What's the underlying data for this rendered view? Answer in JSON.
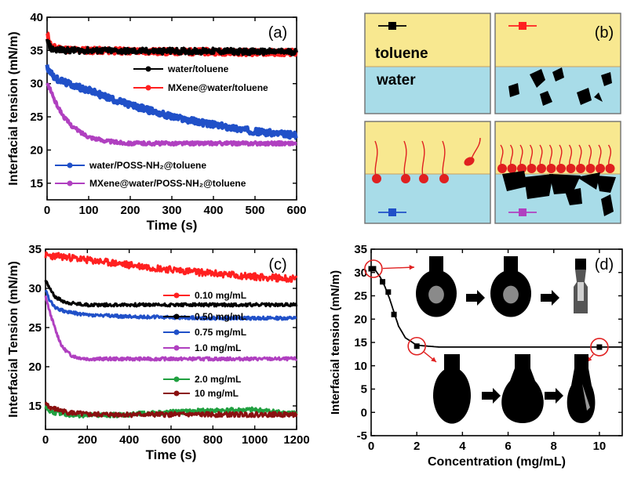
{
  "chart_data": [
    {
      "panel": "(a)",
      "type": "line",
      "xlabel": "Time (s)",
      "ylabel": "Interfacial  tension  (mN/m)",
      "xlim": [
        0,
        600
      ],
      "ylim": [
        12.5,
        40
      ],
      "xticks": [
        0,
        100,
        200,
        300,
        400,
        500,
        600
      ],
      "yticks": [
        15,
        20,
        25,
        30,
        35,
        40
      ],
      "legend": "center-right",
      "series": [
        {
          "name": "water/toluene",
          "color": "#000000",
          "marker": "circle",
          "x": [
            0,
            10,
            50,
            100,
            200,
            300,
            400,
            500,
            600
          ],
          "y": [
            36.5,
            35.2,
            35.0,
            35.0,
            34.9,
            34.9,
            34.9,
            34.8,
            34.8
          ]
        },
        {
          "name": "MXene@water/toluene",
          "color": "#ff2020",
          "marker": "circle",
          "x": [
            0,
            10,
            50,
            100,
            200,
            300,
            400,
            500,
            600
          ],
          "y": [
            37.5,
            35.5,
            35.1,
            35.0,
            34.9,
            34.8,
            34.8,
            34.7,
            34.7
          ]
        },
        {
          "name": "water/POSS-NH₂@toluene",
          "color": "#2050c8",
          "marker": "circle",
          "x": [
            0,
            20,
            50,
            100,
            150,
            200,
            300,
            400,
            500,
            600
          ],
          "y": [
            32.5,
            30.8,
            30.0,
            29.0,
            27.8,
            26.8,
            25.0,
            23.8,
            22.8,
            22.2
          ]
        },
        {
          "name": "MXene@water/POSS-NH₂@toluene",
          "color": "#b040c0",
          "marker": "circle",
          "x": [
            0,
            10,
            20,
            40,
            60,
            80,
            100,
            130,
            160,
            200,
            300,
            400,
            500,
            600
          ],
          "y": [
            30.0,
            28.8,
            27.2,
            25.0,
            23.6,
            22.7,
            22.0,
            21.5,
            21.2,
            21.0,
            21.0,
            21.0,
            21.0,
            21.0
          ]
        }
      ]
    },
    {
      "panel": "(b)",
      "type": "diagram",
      "labels": {
        "top": "toluene",
        "bottom": "water"
      },
      "colors": {
        "toluene": "#f8e890",
        "water": "#a8dce8",
        "marker_black": "#000000",
        "marker_red": "#ff2020",
        "marker_blue": "#2050c8",
        "marker_purple": "#b040c0"
      }
    },
    {
      "panel": "(c)",
      "type": "line",
      "xlabel": "Time (s)",
      "ylabel": "Interfacial Tension (mN/m)",
      "xlim": [
        0,
        1200
      ],
      "ylim": [
        12,
        35
      ],
      "xticks": [
        0,
        200,
        400,
        600,
        800,
        1000,
        1200
      ],
      "yticks": [
        15,
        20,
        25,
        30,
        35
      ],
      "legend": "center-right",
      "series": [
        {
          "name": "0.10 mg/mL",
          "color": "#ff2020",
          "x": [
            0,
            100,
            200,
            400,
            600,
            800,
            1000,
            1200
          ],
          "y": [
            34.2,
            34.0,
            33.6,
            33.0,
            32.4,
            31.9,
            31.5,
            31.2
          ]
        },
        {
          "name": "0.50 mg/mL",
          "color": "#000000",
          "x": [
            0,
            20,
            50,
            100,
            150,
            200,
            400,
            600,
            800,
            1000,
            1200
          ],
          "y": [
            31.0,
            30.0,
            28.8,
            28.2,
            28.0,
            27.9,
            27.9,
            27.9,
            27.9,
            27.9,
            27.9
          ]
        },
        {
          "name": "0.75 mg/mL",
          "color": "#2050c8",
          "x": [
            0,
            20,
            50,
            100,
            200,
            400,
            600,
            800,
            1000,
            1200
          ],
          "y": [
            29.8,
            28.5,
            27.5,
            27.0,
            26.6,
            26.4,
            26.3,
            26.2,
            26.2,
            26.2
          ]
        },
        {
          "name": "1.0 mg/mL",
          "color": "#b040c0",
          "x": [
            0,
            20,
            50,
            80,
            120,
            150,
            200,
            400,
            600,
            800,
            1000,
            1200
          ],
          "y": [
            29.0,
            27.0,
            24.5,
            22.5,
            21.5,
            21.2,
            21.0,
            21.0,
            21.0,
            21.0,
            21.0,
            21.0
          ]
        },
        {
          "name": "2.0 mg/mL",
          "color": "#20a040",
          "x": [
            0,
            20,
            100,
            200,
            400,
            600,
            800,
            1000,
            1200
          ],
          "y": [
            14.8,
            14.3,
            13.9,
            13.8,
            13.9,
            14.2,
            14.4,
            14.5,
            14.0
          ]
        },
        {
          "name": "10 mg/mL",
          "color": "#8a1010",
          "x": [
            0,
            20,
            100,
            200,
            400,
            600,
            800,
            1000,
            1200
          ],
          "y": [
            15.5,
            14.8,
            14.2,
            13.9,
            13.9,
            13.9,
            13.9,
            13.9,
            13.9
          ]
        }
      ]
    },
    {
      "panel": "(d)",
      "type": "line",
      "xlabel": "Concentration (mg/mL)",
      "ylabel": "Interfacial  tension  (mN/m)",
      "xlim": [
        0,
        11
      ],
      "ylim": [
        -5,
        35
      ],
      "xticks": [
        0,
        2,
        4,
        6,
        8,
        10
      ],
      "yticks": [
        -5,
        0,
        5,
        10,
        15,
        20,
        25,
        30,
        35
      ],
      "series": [
        {
          "name": "",
          "color": "#000000",
          "marker": "square",
          "x": [
            0,
            0.1,
            0.5,
            0.75,
            1.0,
            2.0,
            10.0
          ],
          "y": [
            30.8,
            30.8,
            28.0,
            25.8,
            21.0,
            14.2,
            14.0
          ]
        }
      ],
      "fit_line": {
        "x": [
          0,
          0.2,
          0.4,
          0.6,
          0.8,
          1.0,
          1.2,
          1.5,
          2.0,
          3.0,
          5.0,
          11.0
        ],
        "y": [
          30.8,
          30.4,
          29.0,
          27.0,
          24.5,
          21.5,
          18.5,
          16.0,
          14.4,
          14.0,
          14.0,
          14.0
        ]
      },
      "highlighted_points": [
        {
          "x": 0.1,
          "y": 30.8
        },
        {
          "x": 2.0,
          "y": 14.2
        },
        {
          "x": 10.0,
          "y": 14.0
        }
      ]
    }
  ]
}
